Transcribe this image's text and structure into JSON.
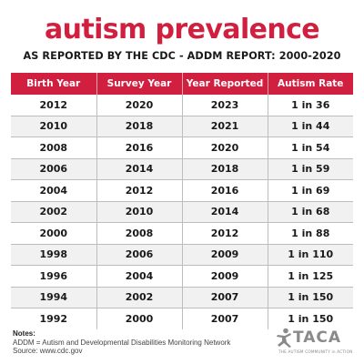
{
  "header": {
    "title": "autism prevalence",
    "subtitle": "AS REPORTED BY THE CDC - ADDM REPORT: 2000-2020"
  },
  "table": {
    "columns": [
      "Birth Year",
      "Survey Year",
      "Year Reported",
      "Autism Rate"
    ],
    "rows": [
      [
        "2012",
        "2020",
        "2023",
        "1 in 36"
      ],
      [
        "2010",
        "2018",
        "2021",
        "1 in 44"
      ],
      [
        "2008",
        "2016",
        "2020",
        "1 in 54"
      ],
      [
        "2006",
        "2014",
        "2018",
        "1 in 59"
      ],
      [
        "2004",
        "2012",
        "2016",
        "1 in 69"
      ],
      [
        "2002",
        "2010",
        "2014",
        "1 in 68"
      ],
      [
        "2000",
        "2008",
        "2012",
        "1 in 88"
      ],
      [
        "1998",
        "2006",
        "2009",
        "1 in 110"
      ],
      [
        "1996",
        "2004",
        "2009",
        "1 in 125"
      ],
      [
        "1994",
        "2002",
        "2007",
        "1 in 150"
      ],
      [
        "1992",
        "2000",
        "2007",
        "1 in 150"
      ]
    ]
  },
  "notes": {
    "heading": "Notes:",
    "lines": [
      "ADDM = Autism and Developmental Disabilities Monitoring Network",
      "Source: www.cdc.gov"
    ]
  },
  "logo": {
    "name": "TACA",
    "tagline": "THE AUTISM COMMUNITY in ACTION"
  },
  "colors": {
    "brand_red": "#d11f3f",
    "row_stripe": "#f1f1f1",
    "text_dark": "#1a1a1a",
    "logo_gray": "#8a8a8a"
  }
}
